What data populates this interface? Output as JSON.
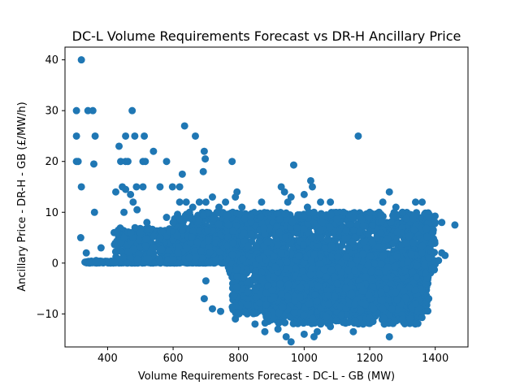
{
  "chart_data": {
    "type": "scatter",
    "title": "DC-L Volume Requirements Forecast vs DR-H Ancillary Price",
    "xlabel": "Volume Requirements Forecast - DC-L - GB (MW)",
    "ylabel": "Ancillary Price - DR-H - GB (£/MW/h)",
    "xlim": [
      270,
      1500
    ],
    "ylim": [
      -16.5,
      42.5
    ],
    "xticks": [
      400,
      600,
      800,
      1000,
      1200,
      1400
    ],
    "yticks": [
      -10,
      0,
      10,
      20,
      30,
      40
    ],
    "grid": false,
    "marker_color": "#1f77b4",
    "points": [
      [
        320,
        40
      ],
      [
        305,
        30
      ],
      [
        340,
        30
      ],
      [
        355,
        30
      ],
      [
        475,
        30
      ],
      [
        305,
        25
      ],
      [
        362,
        25
      ],
      [
        455,
        25
      ],
      [
        483,
        25
      ],
      [
        512,
        25
      ],
      [
        1165,
        25
      ],
      [
        635,
        27
      ],
      [
        668,
        25
      ],
      [
        305,
        20
      ],
      [
        310,
        20
      ],
      [
        358,
        19.5
      ],
      [
        440,
        20
      ],
      [
        455,
        20
      ],
      [
        462,
        20
      ],
      [
        508,
        20
      ],
      [
        515,
        20
      ],
      [
        580,
        20
      ],
      [
        695,
        22
      ],
      [
        780,
        20
      ],
      [
        540,
        22
      ],
      [
        435,
        23
      ],
      [
        320,
        15
      ],
      [
        445,
        15
      ],
      [
        455,
        14.5
      ],
      [
        488,
        15
      ],
      [
        508,
        15
      ],
      [
        560,
        15
      ],
      [
        598,
        15
      ],
      [
        620,
        15
      ],
      [
        628,
        17.5
      ],
      [
        692,
        18
      ],
      [
        795,
        14
      ],
      [
        698,
        20.5
      ],
      [
        968,
        19.3
      ],
      [
        1020,
        16.2
      ],
      [
        1025,
        15
      ],
      [
        425,
        14
      ],
      [
        478,
        12
      ],
      [
        490,
        10.5
      ],
      [
        470,
        13.5
      ],
      [
        360,
        10
      ],
      [
        450,
        10
      ],
      [
        318,
        5
      ],
      [
        335,
        2
      ],
      [
        345,
        0
      ],
      [
        365,
        0.5
      ],
      [
        380,
        3
      ],
      [
        420,
        6
      ],
      [
        430,
        6
      ],
      [
        440,
        4
      ],
      [
        450,
        5
      ],
      [
        500,
        6
      ],
      [
        520,
        8
      ],
      [
        540,
        3
      ],
      [
        560,
        5
      ],
      [
        580,
        9
      ],
      [
        600,
        8
      ],
      [
        620,
        12
      ],
      [
        640,
        12
      ],
      [
        650,
        10
      ],
      [
        660,
        11
      ],
      [
        680,
        12
      ],
      [
        700,
        12
      ],
      [
        720,
        13
      ],
      [
        740,
        11
      ],
      [
        760,
        12
      ],
      [
        790,
        13
      ],
      [
        810,
        11
      ],
      [
        870,
        12
      ],
      [
        930,
        15
      ],
      [
        940,
        14
      ],
      [
        950,
        12
      ],
      [
        960,
        13
      ],
      [
        1000,
        13.5
      ],
      [
        1010,
        11
      ],
      [
        1030,
        10
      ],
      [
        1050,
        12
      ],
      [
        1080,
        12
      ],
      [
        1120,
        10
      ],
      [
        1170,
        9
      ],
      [
        1200,
        10
      ],
      [
        1240,
        12
      ],
      [
        1260,
        14
      ],
      [
        1280,
        11
      ],
      [
        1300,
        10
      ],
      [
        1340,
        12
      ],
      [
        1360,
        12
      ],
      [
        1380,
        9
      ],
      [
        1400,
        8
      ],
      [
        1420,
        8
      ],
      [
        1460,
        7.5
      ],
      [
        1360,
        2
      ],
      [
        1380,
        1
      ],
      [
        1400,
        0
      ],
      [
        1420,
        2
      ],
      [
        1430,
        1.5
      ],
      [
        1410,
        0.5
      ],
      [
        1390,
        -1
      ],
      [
        1370,
        -2
      ],
      [
        700,
        -3.5
      ],
      [
        695,
        -7
      ],
      [
        720,
        -9
      ],
      [
        745,
        -9.5
      ],
      [
        790,
        -11
      ],
      [
        800,
        -10
      ],
      [
        850,
        -12
      ],
      [
        880,
        -13.5
      ],
      [
        920,
        -13
      ],
      [
        945,
        -14.5
      ],
      [
        960,
        -15.5
      ],
      [
        1000,
        -14
      ],
      [
        1030,
        -14.5
      ],
      [
        1040,
        -13.5
      ],
      [
        1080,
        -12.5
      ],
      [
        1150,
        -13.5
      ],
      [
        1180,
        -12
      ],
      [
        1210,
        -11.5
      ],
      [
        1260,
        -14.5
      ],
      [
        1300,
        -11
      ],
      [
        1340,
        -8
      ],
      [
        1380,
        -7
      ]
    ],
    "clusters": [
      {
        "x": [
          330,
          800
        ],
        "y": [
          0,
          0.4
        ],
        "n": 360
      },
      {
        "x": [
          420,
          800
        ],
        "y": [
          0,
          7
        ],
        "n": 520
      },
      {
        "x": [
          600,
          800
        ],
        "y": [
          0,
          10
        ],
        "n": 240
      },
      {
        "x": [
          760,
          1400
        ],
        "y": [
          -2,
          10
        ],
        "n": 1500
      },
      {
        "x": [
          780,
          1380
        ],
        "y": [
          -10,
          2
        ],
        "n": 1700
      },
      {
        "x": [
          880,
          1360
        ],
        "y": [
          -12,
          -4
        ],
        "n": 700
      }
    ]
  }
}
